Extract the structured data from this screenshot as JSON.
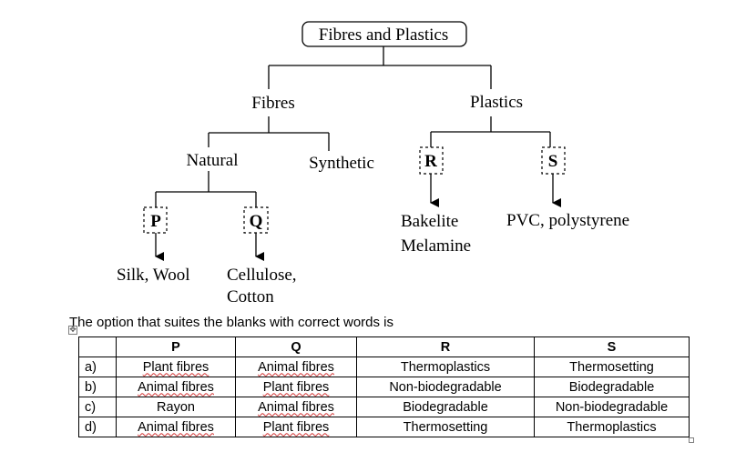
{
  "diagram": {
    "root": "Fibres and Plastics",
    "fibres": "Fibres",
    "plastics": "Plastics",
    "natural": "Natural",
    "synthetic": "Synthetic",
    "box_p": "P",
    "box_q": "Q",
    "box_r": "R",
    "box_s": "S",
    "p_examples": "Silk, Wool",
    "q_examples_line1": "Cellulose,",
    "q_examples_line2": "Cotton",
    "r_examples_line1": "Bakelite",
    "r_examples_line2": "Melamine",
    "s_examples": "PVC, polystyrene"
  },
  "question": "The option that suites the blanks with correct words is",
  "table": {
    "headers": [
      "",
      "P",
      "Q",
      "R",
      "S"
    ],
    "rows": [
      {
        "label": "a)",
        "p": "Plant fibres",
        "q": "Animal fibres",
        "r": "Thermoplastics",
        "s": "Thermosetting"
      },
      {
        "label": "b)",
        "p": "Animal fibres",
        "q": "Plant fibres",
        "r": "Non-biodegradable",
        "s": "Biodegradable"
      },
      {
        "label": "c)",
        "p": "Rayon",
        "q": "Animal fibres",
        "r": "Biodegradable",
        "s": "Non-biodegradable"
      },
      {
        "label": "d)",
        "p": "Animal fibres",
        "q": "Plant fibres",
        "r": "Thermosetting",
        "s": "Thermoplastics"
      }
    ]
  }
}
